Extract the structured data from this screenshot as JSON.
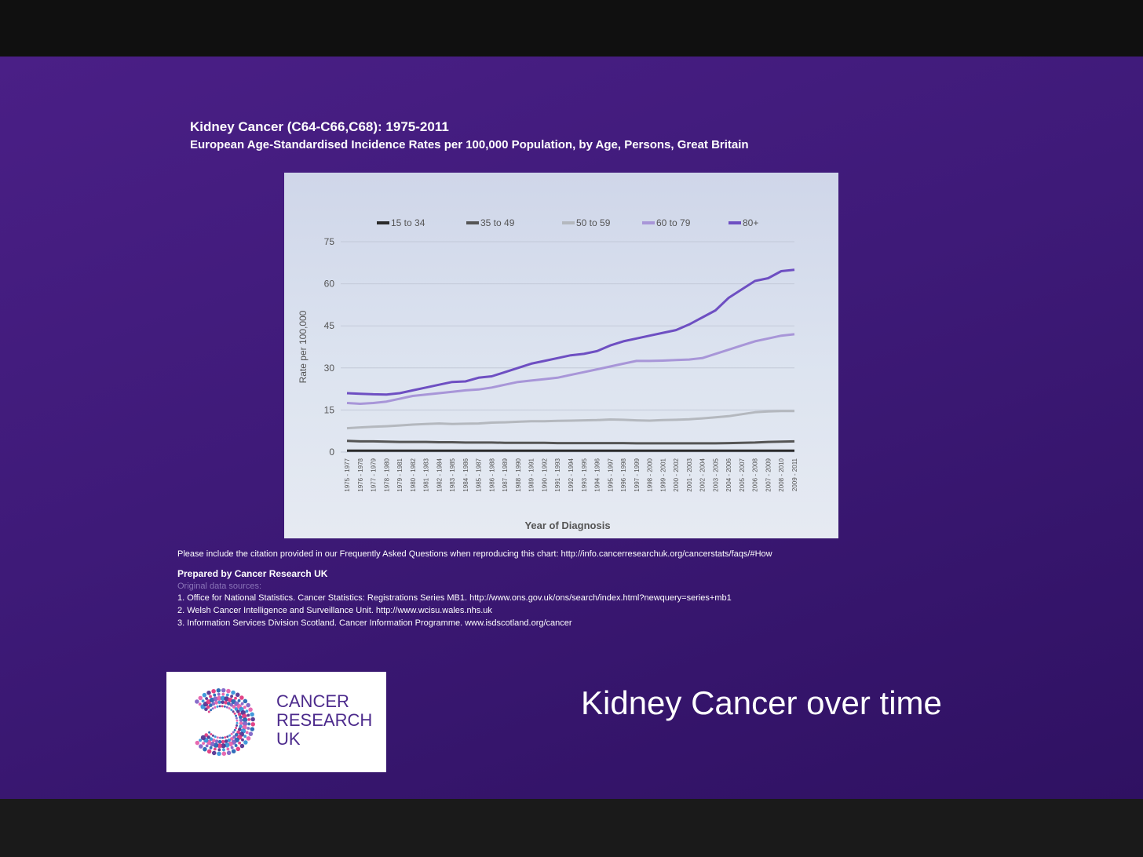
{
  "chart_title": "Kidney Cancer (C64-C66,C68): 1975-2011",
  "chart_subtitle": "European Age-Standardised Incidence Rates per 100,000 Population, by Age, Persons, Great Britain",
  "citation": "Please include the citation provided in our Frequently Asked Questions when reproducing this chart: http://info.cancerresearchuk.org/cancerstats/faqs/#How",
  "prepared_by": "Prepared by Cancer Research UK",
  "sources_title": "Original data sources:",
  "sources": [
    "1. Office for National Statistics. Cancer Statistics: Registrations Series MB1. http://www.ons.gov.uk/ons/search/index.html?newquery=series+mb1",
    "2. Welsh Cancer Intelligence and Surveillance Unit. http://www.wcisu.wales.nhs.uk",
    "3. Information Services Division Scotland. Cancer Information Programme. www.isdscotland.org/cancer"
  ],
  "logo": {
    "line1": "CANCER",
    "line2": "RESEARCH",
    "line3": "UK"
  },
  "slide_heading": "Kidney Cancer over time",
  "colors": {
    "slide_background": "#3e1a78",
    "accent_purple": "#7a5cc4"
  },
  "chart_data": {
    "type": "line",
    "ylabel": "Rate per 100,000",
    "xlabel": "Year of Diagnosis",
    "ylim": [
      0,
      75
    ],
    "yticks": [
      0,
      15,
      30,
      45,
      60,
      75
    ],
    "legend_position": "top",
    "x": [
      "1975 - 1977",
      "1976 - 1978",
      "1977 - 1979",
      "1978 - 1980",
      "1979 - 1981",
      "1980 - 1982",
      "1981 - 1983",
      "1982 - 1984",
      "1983 - 1985",
      "1984 - 1986",
      "1985 - 1987",
      "1986 - 1988",
      "1987 - 1989",
      "1988 - 1990",
      "1989 - 1991",
      "1990 - 1992",
      "1991 - 1993",
      "1992 - 1994",
      "1993 - 1995",
      "1994 - 1996",
      "1995 - 1997",
      "1996 - 1998",
      "1997 - 1999",
      "1998 - 2000",
      "1999 - 2001",
      "2000 - 2002",
      "2001 - 2003",
      "2002 - 2004",
      "2003 - 2005",
      "2004 - 2006",
      "2005 - 2007",
      "2006 - 2008",
      "2007 - 2009",
      "2008 - 2010",
      "2009 - 2011"
    ],
    "series": [
      {
        "name": "15 to 34",
        "color": "#2b2b2b",
        "values": [
          0.5,
          0.5,
          0.5,
          0.5,
          0.5,
          0.5,
          0.5,
          0.5,
          0.5,
          0.5,
          0.5,
          0.5,
          0.5,
          0.5,
          0.5,
          0.5,
          0.5,
          0.5,
          0.5,
          0.5,
          0.5,
          0.5,
          0.5,
          0.5,
          0.5,
          0.5,
          0.5,
          0.5,
          0.5,
          0.5,
          0.5,
          0.5,
          0.5,
          0.5,
          0.5
        ]
      },
      {
        "name": "35 to 49",
        "color": "#555555",
        "values": [
          4,
          3.8,
          3.8,
          3.7,
          3.6,
          3.6,
          3.6,
          3.5,
          3.5,
          3.4,
          3.4,
          3.4,
          3.3,
          3.3,
          3.3,
          3.3,
          3.2,
          3.2,
          3.2,
          3.2,
          3.2,
          3.2,
          3.1,
          3.1,
          3.1,
          3.1,
          3.1,
          3.1,
          3.1,
          3.2,
          3.3,
          3.4,
          3.6,
          3.7,
          3.8
        ]
      },
      {
        "name": "50 to 59",
        "color": "#b4b8be",
        "values": [
          8.5,
          8.8,
          9,
          9.2,
          9.5,
          9.8,
          10,
          10.2,
          10,
          10.1,
          10.2,
          10.5,
          10.6,
          10.8,
          11,
          11,
          11.1,
          11.2,
          11.3,
          11.4,
          11.6,
          11.5,
          11.3,
          11.2,
          11.4,
          11.5,
          11.7,
          12,
          12.4,
          12.8,
          13.5,
          14.2,
          14.5,
          14.6,
          14.6
        ]
      },
      {
        "name": "60 to 79",
        "color": "#a896d8",
        "values": [
          17.5,
          17.2,
          17.5,
          18,
          19,
          20,
          20.5,
          21,
          21.5,
          22,
          22.3,
          23,
          24,
          25,
          25.5,
          26,
          26.5,
          27.5,
          28.5,
          29.5,
          30.5,
          31.5,
          32.5,
          32.5,
          32.6,
          32.8,
          33,
          33.5,
          35,
          36.5,
          38,
          39.5,
          40.5,
          41.5,
          42
        ]
      },
      {
        "name": "80+",
        "color": "#6e4fc2",
        "values": [
          21,
          20.8,
          20.6,
          20.5,
          21,
          22,
          23,
          24,
          25,
          25.2,
          26.5,
          27,
          28.5,
          30,
          31.5,
          32.5,
          33.5,
          34.5,
          35,
          36,
          38,
          39.5,
          40.5,
          41.5,
          42.5,
          43.5,
          45.5,
          48,
          50.5,
          55,
          58,
          61,
          62,
          64.5,
          65
        ]
      }
    ]
  }
}
